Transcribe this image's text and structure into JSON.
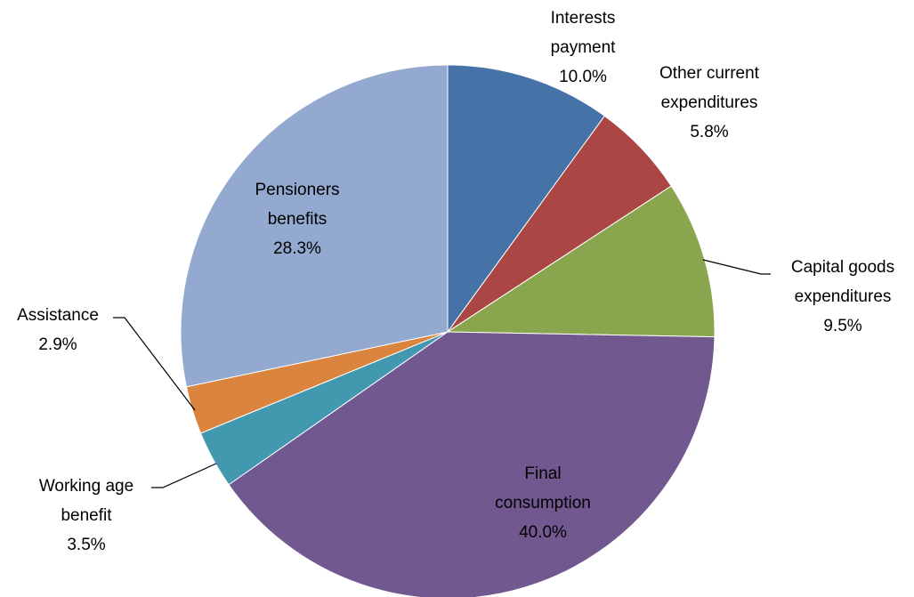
{
  "chart_data": {
    "type": "pie",
    "categories": [
      "Interests payment",
      "Other current expenditures",
      "Capital goods expenditures",
      "Final consumption",
      "Working age benefit",
      "Assistance",
      "Pensioners benefits"
    ],
    "values": [
      10.0,
      5.8,
      9.5,
      40.0,
      3.5,
      2.9,
      28.3
    ],
    "value_labels": [
      "10.0%",
      "5.8%",
      "9.5%",
      "40.0%",
      "3.5%",
      "2.9%",
      "28.3%"
    ],
    "colors": [
      "#4572A7",
      "#AA4643",
      "#89A54E",
      "#71588F",
      "#4198AF",
      "#DB843D",
      "#93A9CF"
    ]
  }
}
